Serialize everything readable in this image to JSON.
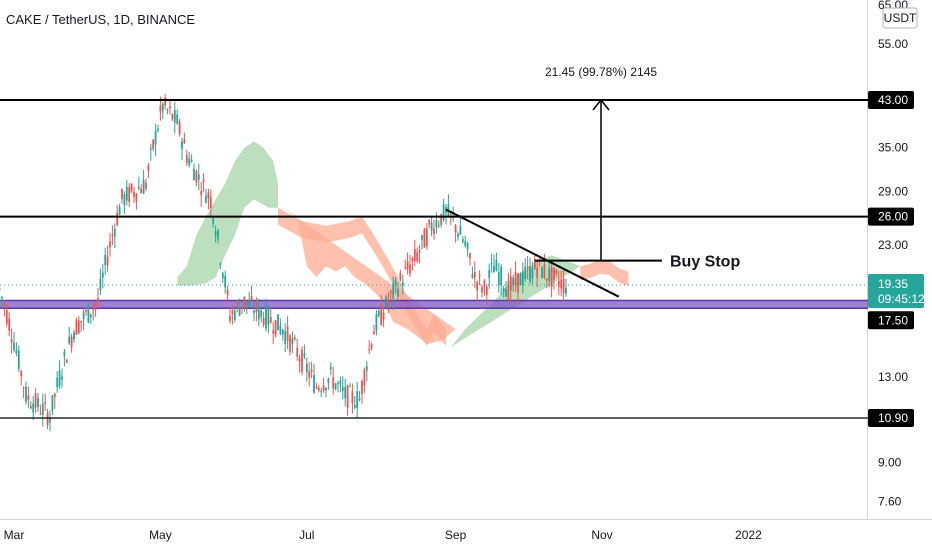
{
  "chart_data": {
    "type": "candlestick",
    "title": "CAKE / TetherUS, 1D, BINANCE",
    "currency_label": "USDT",
    "scale": "log",
    "y_ticks": [
      "65.00",
      "55.00",
      "35.00",
      "29.00",
      "23.00",
      "13.00",
      "9.00",
      "7.60"
    ],
    "x_ticks": [
      "Mar",
      "May",
      "Jul",
      "Sep",
      "Nov",
      "2022"
    ],
    "levels": [
      {
        "value": 43.0,
        "label": "43.00"
      },
      {
        "value": 26.0,
        "label": "26.00"
      },
      {
        "value": 10.9,
        "label": "10.90"
      }
    ],
    "support_zone": {
      "low": 17.5,
      "high": 18.1,
      "label": "17.50"
    },
    "last_price": {
      "value": 19.35,
      "label": "19.35",
      "countdown": "09:45:12",
      "color": "#26a69a"
    },
    "measure": {
      "from": 21.5,
      "to": 43.0,
      "label": "21.45 (99.78%) 2145"
    },
    "buy_stop": {
      "value": 21.5,
      "label": "Buy Stop"
    },
    "trendline": {
      "from": {
        "date": "2021-08-28",
        "value": 26.8
      },
      "to": {
        "date": "2021-11-08",
        "value": 18.4
      }
    },
    "colors": {
      "up": "#26a69a",
      "down": "#ef5350",
      "cloud_bull": "#a5d6a7",
      "cloud_bear": "#ffab91",
      "zone": "#7e57c2"
    }
  }
}
